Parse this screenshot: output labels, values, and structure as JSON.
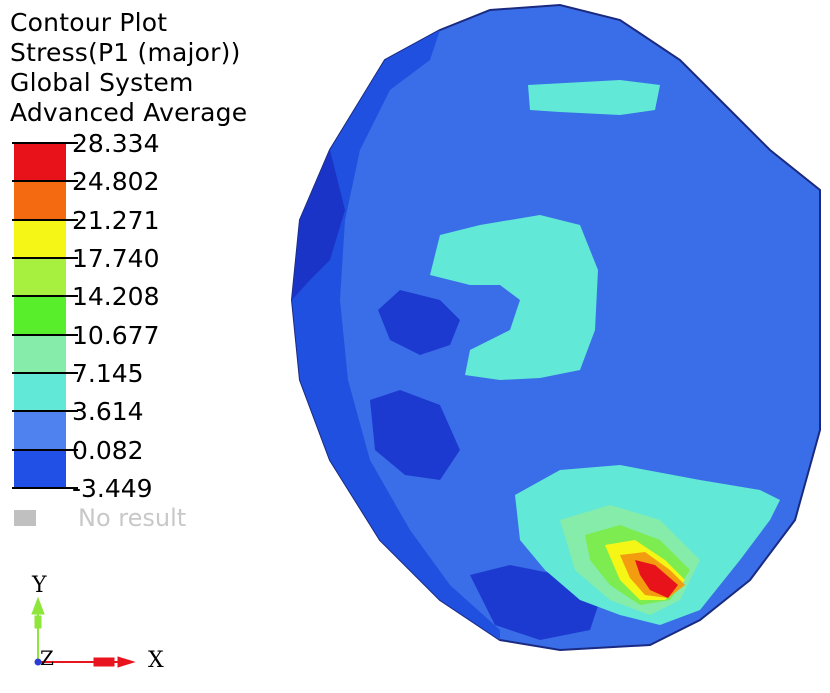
{
  "header": {
    "line1": "Contour Plot",
    "line2": "Stress(P1 (major))",
    "line3": "Global System",
    "line4": "Advanced Average"
  },
  "legend": {
    "values": [
      "28.334",
      "24.802",
      "21.271",
      "17.740",
      "14.208",
      "10.677",
      "7.145",
      "3.614",
      "0.082",
      "-3.449"
    ],
    "colors": [
      "#e8121b",
      "#f46a10",
      "#f6f616",
      "#a8f040",
      "#58ee2c",
      "#86ecaa",
      "#62e8d6",
      "#4f82ee",
      "#2050e6"
    ],
    "no_result_label": "No result",
    "no_result_color": "#c0c0c0"
  },
  "triad": {
    "y_label": "Y",
    "x_label": "X",
    "z_label": "Z",
    "y_color": "#8ee63a",
    "x_color": "#e8141e",
    "z_color": "#2a3cd4"
  }
}
